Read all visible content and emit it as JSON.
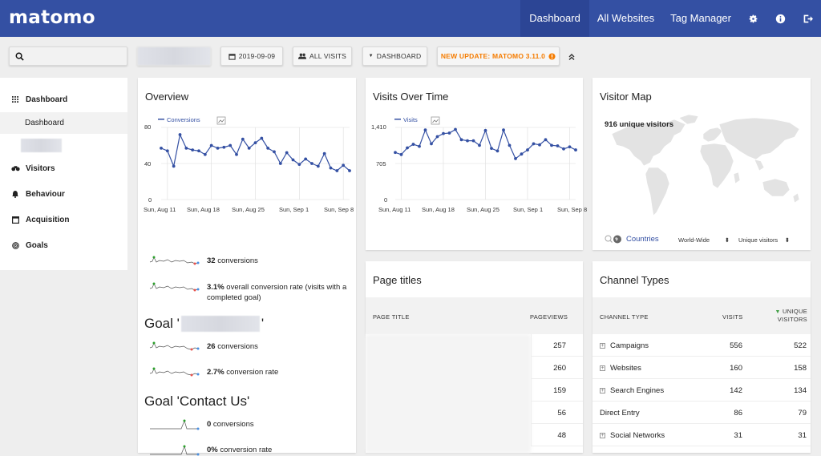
{
  "header": {
    "logo": "matomo",
    "nav": [
      "Dashboard",
      "All Websites",
      "Tag Manager"
    ],
    "icons": [
      "gear-icon",
      "info-icon",
      "logout-icon"
    ]
  },
  "controls": {
    "date": "2019-09-09",
    "segment": "ALL VISITS",
    "dashboard": "DASHBOARD",
    "update": "NEW UPDATE: MATOMO 3.11.0"
  },
  "sidebar": {
    "dashboard": "Dashboard",
    "dashboard_sub": "Dashboard",
    "items": [
      "Visitors",
      "Behaviour",
      "Acquisition",
      "Goals"
    ]
  },
  "overview": {
    "title": "Overview",
    "legend": "Conversions",
    "y_ticks": [
      "80",
      "40",
      "0"
    ],
    "x_ticks": [
      "Sun, Aug 11",
      "Sun, Aug 18",
      "Sun, Aug 25",
      "Sun, Sep 1",
      "Sun, Sep 8"
    ],
    "stats": [
      {
        "value": "32",
        "label": " conversions"
      },
      {
        "value": "3.1%",
        "label": " overall conversion rate (visits with a completed goal)"
      }
    ],
    "goal1": {
      "prefix": "Goal '",
      "suffix": "'",
      "conversions_value": "26",
      "conversions_label": " conversions",
      "rate_value": "2.7%",
      "rate_label": " conversion rate"
    },
    "goal2": {
      "title": "Goal 'Contact Us'",
      "conversions_value": "0",
      "conversions_label": " conversions",
      "rate_value": "0%",
      "rate_label": " conversion rate"
    }
  },
  "visits": {
    "title": "Visits Over Time",
    "legend": "Visits",
    "y_ticks": [
      "1,410",
      "705",
      "0"
    ],
    "x_ticks": [
      "Sun, Aug 11",
      "Sun, Aug 18",
      "Sun, Aug 25",
      "Sun, Sep 1",
      "Sun, Sep 8"
    ]
  },
  "visitor_map": {
    "title": "Visitor Map",
    "unique": "916 unique visitors",
    "countries": "Countries",
    "region": "World-Wide",
    "metric": "Unique visitors"
  },
  "page_titles": {
    "title": "Page titles",
    "col1": "PAGE TITLE",
    "col2": "PAGEVIEWS",
    "values": [
      "257",
      "260",
      "159",
      "56",
      "48"
    ]
  },
  "channels": {
    "title": "Channel Types",
    "col1": "CHANNEL TYPE",
    "col2": "VISITS",
    "col3": "UNIQUE VISITORS",
    "rows": [
      {
        "name": "Campaigns",
        "visits": "556",
        "unique": "522",
        "expand": true
      },
      {
        "name": "Websites",
        "visits": "160",
        "unique": "158",
        "expand": true
      },
      {
        "name": "Search Engines",
        "visits": "142",
        "unique": "134",
        "expand": true
      },
      {
        "name": "Direct Entry",
        "visits": "86",
        "unique": "79",
        "expand": false
      },
      {
        "name": "Social Networks",
        "visits": "31",
        "unique": "31",
        "expand": true
      }
    ]
  },
  "chart_data": [
    {
      "type": "line",
      "legend": "Conversions",
      "ylim": [
        0,
        80
      ],
      "x": [
        "Aug 10",
        "Aug 11",
        "Aug 12",
        "Aug 13",
        "Aug 14",
        "Aug 15",
        "Aug 16",
        "Aug 17",
        "Aug 18",
        "Aug 19",
        "Aug 20",
        "Aug 21",
        "Aug 22",
        "Aug 23",
        "Aug 24",
        "Aug 25",
        "Aug 26",
        "Aug 27",
        "Aug 28",
        "Aug 29",
        "Aug 30",
        "Aug 31",
        "Sep 1",
        "Sep 2",
        "Sep 3",
        "Sep 4",
        "Sep 5",
        "Sep 6",
        "Sep 7",
        "Sep 8",
        "Sep 9"
      ],
      "series": [
        {
          "name": "Conversions",
          "values": [
            57,
            54,
            37,
            72,
            57,
            55,
            54,
            50,
            60,
            57,
            58,
            60,
            50,
            67,
            57,
            63,
            68,
            57,
            53,
            40,
            52,
            44,
            39,
            45,
            40,
            37,
            51,
            35,
            32,
            38,
            32
          ]
        }
      ]
    },
    {
      "type": "line",
      "legend": "Visits",
      "ylim": [
        0,
        1410
      ],
      "x": [
        "Aug 10",
        "Aug 11",
        "Aug 12",
        "Aug 13",
        "Aug 14",
        "Aug 15",
        "Aug 16",
        "Aug 17",
        "Aug 18",
        "Aug 19",
        "Aug 20",
        "Aug 21",
        "Aug 22",
        "Aug 23",
        "Aug 24",
        "Aug 25",
        "Aug 26",
        "Aug 27",
        "Aug 28",
        "Aug 29",
        "Aug 30",
        "Aug 31",
        "Sep 1",
        "Sep 2",
        "Sep 3",
        "Sep 4",
        "Sep 5",
        "Sep 6",
        "Sep 7",
        "Sep 8",
        "Sep 9"
      ],
      "series": [
        {
          "name": "Visits",
          "values": [
            920,
            880,
            1010,
            1080,
            1040,
            1360,
            1090,
            1230,
            1290,
            1300,
            1370,
            1170,
            1150,
            1150,
            1060,
            1350,
            1000,
            950,
            1360,
            1060,
            800,
            890,
            970,
            1090,
            1070,
            1170,
            1060,
            1050,
            990,
            1030,
            970
          ]
        }
      ]
    }
  ]
}
